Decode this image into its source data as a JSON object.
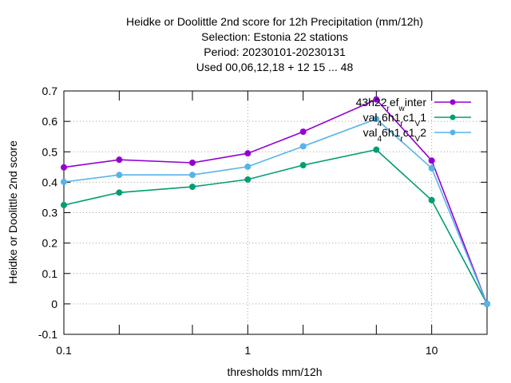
{
  "chart_data": {
    "type": "line",
    "title_lines": [
      "Heidke or Doolittle 2nd score  for 12h Precipitation (mm/12h)",
      "Selection: Estonia     22 stations",
      "Period: 20230101-20230131",
      "Used  00,06,12,18  + 12 15 ... 48"
    ],
    "xlabel": "thresholds mm/12h",
    "ylabel": "Heidke or Doolittle 2nd score",
    "x_scale": "log",
    "xlim": [
      0.1,
      20
    ],
    "ylim": [
      -0.1,
      0.7
    ],
    "x_ticks": [
      {
        "value": 0.1,
        "label": "0.1"
      },
      {
        "value": 1,
        "label": "1"
      },
      {
        "value": 10,
        "label": "10"
      }
    ],
    "x_minor_ticks": [
      0.2,
      0.5,
      2,
      5,
      20
    ],
    "y_ticks": [
      {
        "value": -0.1,
        "label": "-0.1"
      },
      {
        "value": 0,
        "label": "0"
      },
      {
        "value": 0.1,
        "label": "0.1"
      },
      {
        "value": 0.2,
        "label": "0.2"
      },
      {
        "value": 0.3,
        "label": "0.3"
      },
      {
        "value": 0.4,
        "label": "0.4"
      },
      {
        "value": 0.5,
        "label": "0.5"
      },
      {
        "value": 0.6,
        "label": "0.6"
      },
      {
        "value": 0.7,
        "label": "0.7"
      }
    ],
    "grid": true,
    "legend_position": "top-right",
    "x": [
      0.1,
      0.2,
      0.5,
      1,
      2,
      5,
      10,
      20
    ],
    "series": [
      {
        "name_parts": [
          [
            "43h22",
            ""
          ],
          [
            "r",
            "sub"
          ],
          [
            "ef",
            ""
          ],
          [
            "w",
            "sub"
          ],
          [
            "inter",
            ""
          ]
        ],
        "color": "#9400d3",
        "marker": "filled-circle",
        "values": [
          0.449,
          0.474,
          0.464,
          0.495,
          0.566,
          0.672,
          0.471,
          0.0
        ]
      },
      {
        "name_parts": [
          [
            "val",
            ""
          ],
          [
            "4",
            "sub"
          ],
          [
            "6h1",
            ""
          ],
          [
            "r",
            "sub"
          ],
          [
            "c1",
            ""
          ],
          [
            "V",
            "sub"
          ],
          [
            "1",
            ""
          ]
        ],
        "color": "#009e73",
        "marker": "filled-circle",
        "values": [
          0.325,
          0.366,
          0.385,
          0.409,
          0.456,
          0.507,
          0.341,
          0.0
        ]
      },
      {
        "name_parts": [
          [
            "val",
            ""
          ],
          [
            "4",
            "sub"
          ],
          [
            "6h1",
            ""
          ],
          [
            "r",
            "sub"
          ],
          [
            "c1",
            ""
          ],
          [
            "V",
            "sub"
          ],
          [
            "2",
            ""
          ]
        ],
        "color": "#56b4e9",
        "marker": "filled-circle",
        "values": [
          0.401,
          0.424,
          0.424,
          0.451,
          0.518,
          0.608,
          0.446,
          0.0
        ]
      }
    ]
  }
}
